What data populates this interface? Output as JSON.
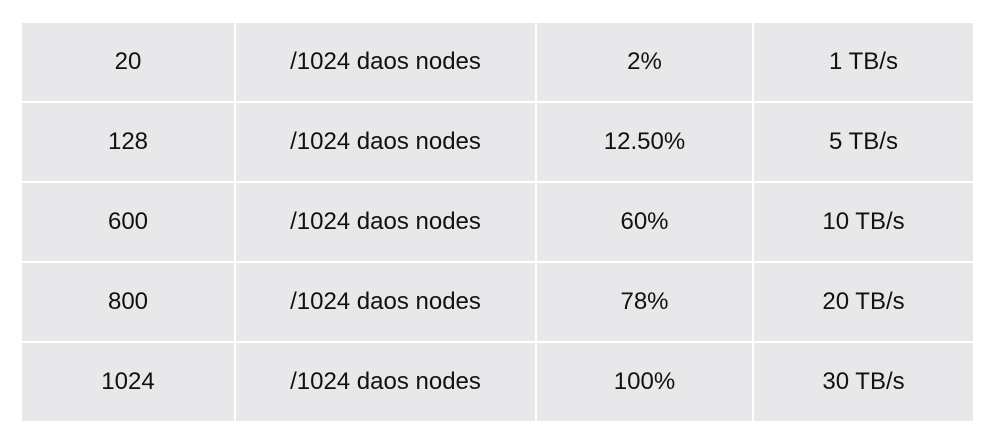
{
  "table": {
    "rows": [
      [
        "20",
        "/1024 daos nodes",
        "2%",
        "1 TB/s"
      ],
      [
        "128",
        "/1024 daos nodes",
        "12.50%",
        "5 TB/s"
      ],
      [
        "600",
        "/1024 daos nodes",
        "60%",
        "10 TB/s"
      ],
      [
        "800",
        "/1024 daos nodes",
        "78%",
        "20 TB/s"
      ],
      [
        "1024",
        "/1024 daos nodes",
        "100%",
        "30 TB/s"
      ]
    ]
  }
}
